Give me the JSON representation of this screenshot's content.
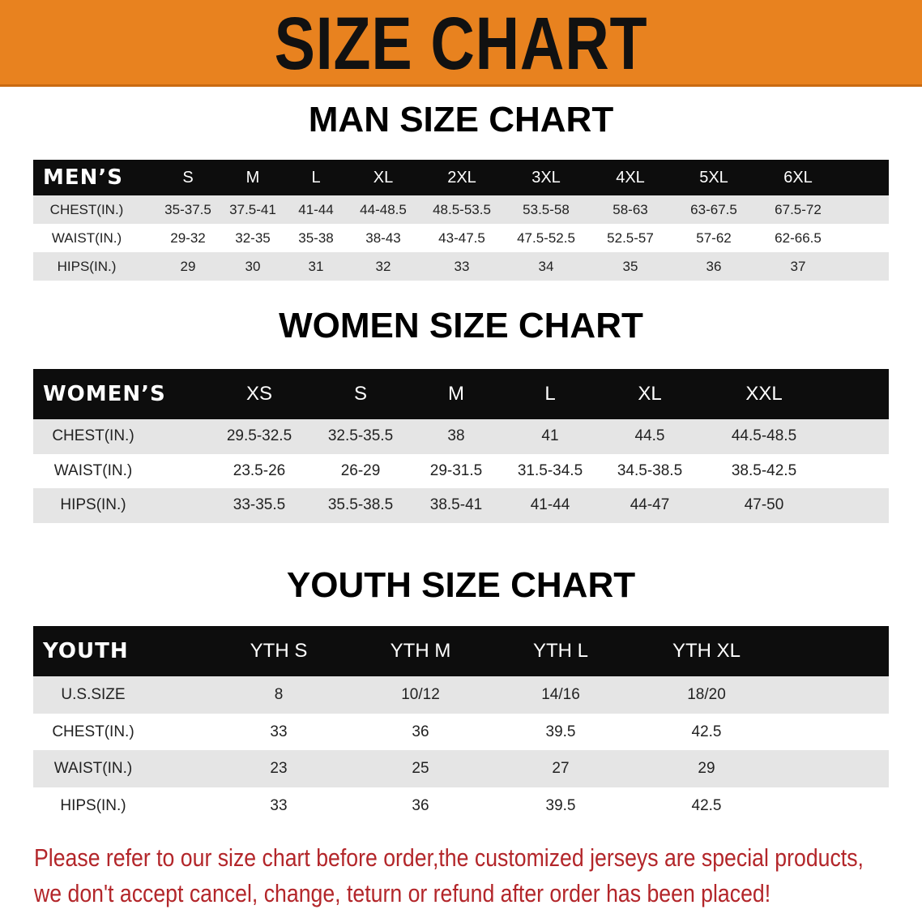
{
  "banner": {
    "title": "SIZE CHART",
    "color": "#e8821f"
  },
  "men": {
    "title": "MAN SIZE CHART",
    "header_label": "MEN’S",
    "sizes": [
      "S",
      "M",
      "L",
      "XL",
      "2XL",
      "3XL",
      "4XL",
      "5XL",
      "6XL"
    ],
    "rows": [
      {
        "label": "CHEST(IN.)",
        "values": [
          "35-37.5",
          "37.5-41",
          "41-44",
          "44-48.5",
          "48.5-53.5",
          "53.5-58",
          "58-63",
          "63-67.5",
          "67.5-72"
        ]
      },
      {
        "label": "WAIST(IN.)",
        "values": [
          "29-32",
          "32-35",
          "35-38",
          "38-43",
          "43-47.5",
          "47.5-52.5",
          "52.5-57",
          "57-62",
          "62-66.5"
        ]
      },
      {
        "label": "HIPS(IN.)",
        "values": [
          "29",
          "30",
          "31",
          "32",
          "33",
          "34",
          "35",
          "36",
          "37"
        ]
      }
    ]
  },
  "women": {
    "title": "WOMEN SIZE CHART",
    "header_label": "WOMEN’S",
    "sizes": [
      "XS",
      "S",
      "M",
      "L",
      "XL",
      "XXL"
    ],
    "rows": [
      {
        "label": "CHEST(IN.)",
        "values": [
          "29.5-32.5",
          "32.5-35.5",
          "38",
          "41",
          "44.5",
          "44.5-48.5"
        ]
      },
      {
        "label": "WAIST(IN.)",
        "values": [
          "23.5-26",
          "26-29",
          "29-31.5",
          "31.5-34.5",
          "34.5-38.5",
          "38.5-42.5"
        ]
      },
      {
        "label": "HIPS(IN.)",
        "values": [
          "33-35.5",
          "35.5-38.5",
          "38.5-41",
          "41-44",
          "44-47",
          "47-50"
        ]
      }
    ]
  },
  "youth": {
    "title": "YOUTH SIZE CHART",
    "header_label": "YOUTH",
    "sizes": [
      "YTH S",
      "YTH M",
      "YTH L",
      "YTH XL"
    ],
    "rows": [
      {
        "label": "U.S.SIZE",
        "values": [
          "8",
          "10/12",
          "14/16",
          "18/20"
        ]
      },
      {
        "label": "CHEST(IN.)",
        "values": [
          "33",
          "36",
          "39.5",
          "42.5"
        ]
      },
      {
        "label": "WAIST(IN.)",
        "values": [
          "23",
          "25",
          "27",
          "29"
        ]
      },
      {
        "label": "HIPS(IN.)",
        "values": [
          "33",
          "36",
          "39.5",
          "42.5"
        ]
      }
    ]
  },
  "notice": {
    "line1": "Please refer to our size chart before order,the customized jerseys are special products,",
    "line2": "we don't accept cancel, change, teturn or refund after order has been placed!",
    "color": "#b3262a"
  }
}
